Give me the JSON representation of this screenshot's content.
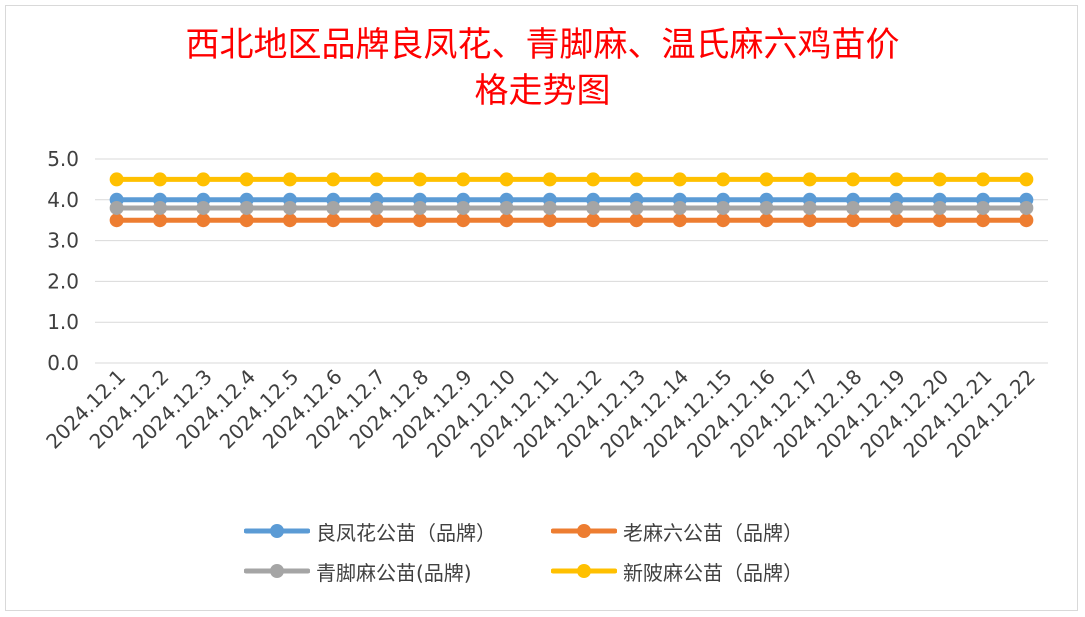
{
  "chart_data": {
    "type": "line",
    "title": "西北地区品牌良凤花、青脚麻、温氏麻六鸡苗价格走势图",
    "title_lines": [
      "西北地区品牌良凤花、青脚麻、温氏麻六鸡苗价",
      "格走势图"
    ],
    "categories": [
      "2024.12.1",
      "2024.12.2",
      "2024.12.3",
      "2024.12.4",
      "2024.12.5",
      "2024.12.6",
      "2024.12.7",
      "2024.12.8",
      "2024.12.9",
      "2024.12.10",
      "2024.12.11",
      "2024.12.12",
      "2024.12.13",
      "2024.12.14",
      "2024.12.15",
      "2024.12.16",
      "2024.12.17",
      "2024.12.18",
      "2024.12.19",
      "2024.12.20",
      "2024.12.21",
      "2024.12.22"
    ],
    "ylim": [
      0,
      5
    ],
    "yticks": [
      "0.0",
      "1.0",
      "2.0",
      "3.0",
      "4.0",
      "5.0"
    ],
    "grid": true,
    "legend_position": "bottom",
    "series": [
      {
        "name": "良凤花公苗（品牌）",
        "color": "#5b9bd5",
        "values": [
          4.0,
          4.0,
          4.0,
          4.0,
          4.0,
          4.0,
          4.0,
          4.0,
          4.0,
          4.0,
          4.0,
          4.0,
          4.0,
          4.0,
          4.0,
          4.0,
          4.0,
          4.0,
          4.0,
          4.0,
          4.0,
          4.0
        ]
      },
      {
        "name": "老麻六公苗（品牌）",
        "color": "#ed7d31",
        "values": [
          3.5,
          3.5,
          3.5,
          3.5,
          3.5,
          3.5,
          3.5,
          3.5,
          3.5,
          3.5,
          3.5,
          3.5,
          3.5,
          3.5,
          3.5,
          3.5,
          3.5,
          3.5,
          3.5,
          3.5,
          3.5,
          3.5
        ]
      },
      {
        "name": "青脚麻公苗(品牌)",
        "color": "#a5a5a5",
        "values": [
          3.8,
          3.8,
          3.8,
          3.8,
          3.8,
          3.8,
          3.8,
          3.8,
          3.8,
          3.8,
          3.8,
          3.8,
          3.8,
          3.8,
          3.8,
          3.8,
          3.8,
          3.8,
          3.8,
          3.8,
          3.8,
          3.8
        ]
      },
      {
        "name": "新陂麻公苗（品牌）",
        "color": "#ffc000",
        "values": [
          4.5,
          4.5,
          4.5,
          4.5,
          4.5,
          4.5,
          4.5,
          4.5,
          4.5,
          4.5,
          4.5,
          4.5,
          4.5,
          4.5,
          4.5,
          4.5,
          4.5,
          4.5,
          4.5,
          4.5,
          4.5,
          4.5
        ]
      }
    ]
  }
}
